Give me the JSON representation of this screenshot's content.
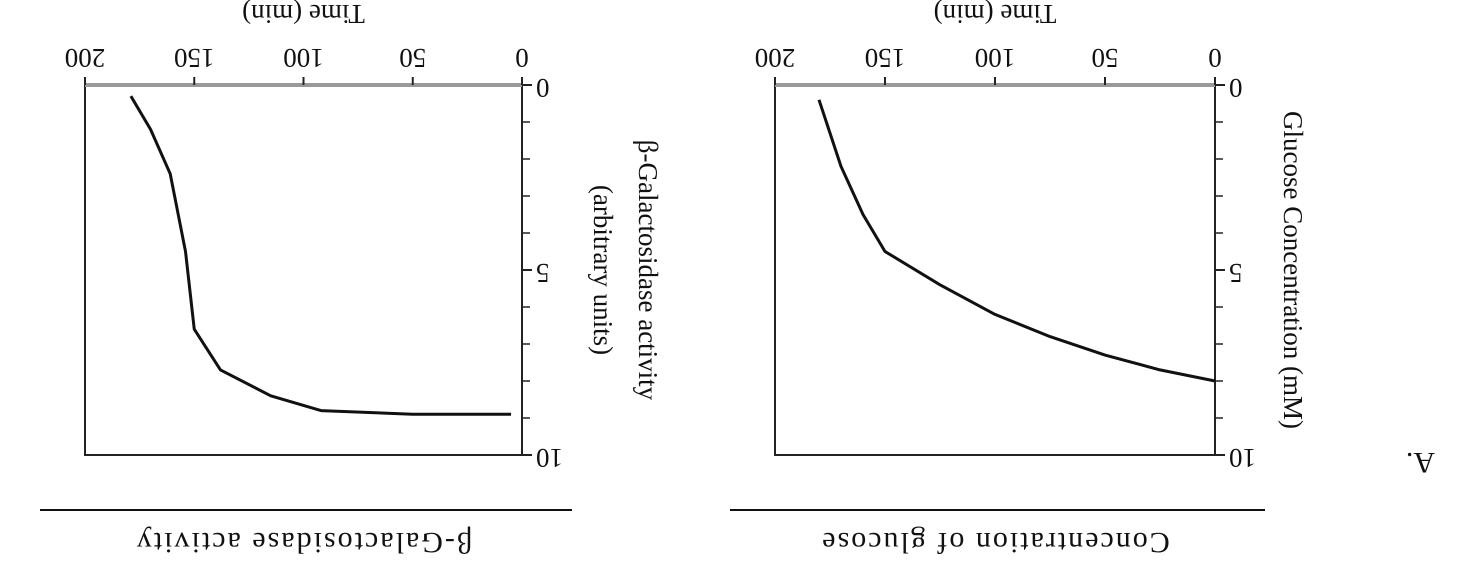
{
  "panel_label": "A.",
  "chart_data": [
    {
      "type": "line",
      "title": "Concentration of glucose",
      "xlabel": "Time (min)",
      "ylabel": [
        "Glucose Concentration (mM)"
      ],
      "x": [
        0,
        25,
        50,
        75,
        100,
        125,
        150,
        160,
        170,
        180
      ],
      "series": [
        {
          "color": "#111111",
          "values": [
            8.0,
            7.7,
            7.3,
            6.8,
            6.2,
            5.4,
            4.5,
            3.5,
            2.2,
            0.4
          ]
        }
      ],
      "xlim": [
        0,
        200
      ],
      "xticks": [
        0,
        50,
        100,
        150,
        200
      ],
      "ylim": [
        0,
        10
      ],
      "yticks": [
        0,
        5,
        10
      ],
      "yminorticks": [
        1,
        2,
        3,
        4,
        6,
        7,
        8,
        9
      ]
    },
    {
      "type": "line",
      "title": "β-Galactosidase activity",
      "xlabel": "Time (min)",
      "ylabel": [
        "β-Galactosidase activity",
        "(arbitrary units)"
      ],
      "x": [
        5,
        50,
        92,
        115,
        138,
        150,
        154,
        161,
        170,
        179
      ],
      "series": [
        {
          "color": "#111111",
          "values": [
            8.9,
            8.9,
            8.8,
            8.4,
            7.7,
            6.6,
            4.5,
            2.4,
            1.2,
            0.3
          ]
        }
      ],
      "xlim": [
        0,
        200
      ],
      "xticks": [
        0,
        50,
        100,
        150,
        200
      ],
      "ylim": [
        0,
        10
      ],
      "yticks": [
        0,
        5,
        10
      ],
      "yminorticks": [
        1,
        2,
        3,
        4,
        6,
        7,
        8,
        9
      ]
    }
  ]
}
